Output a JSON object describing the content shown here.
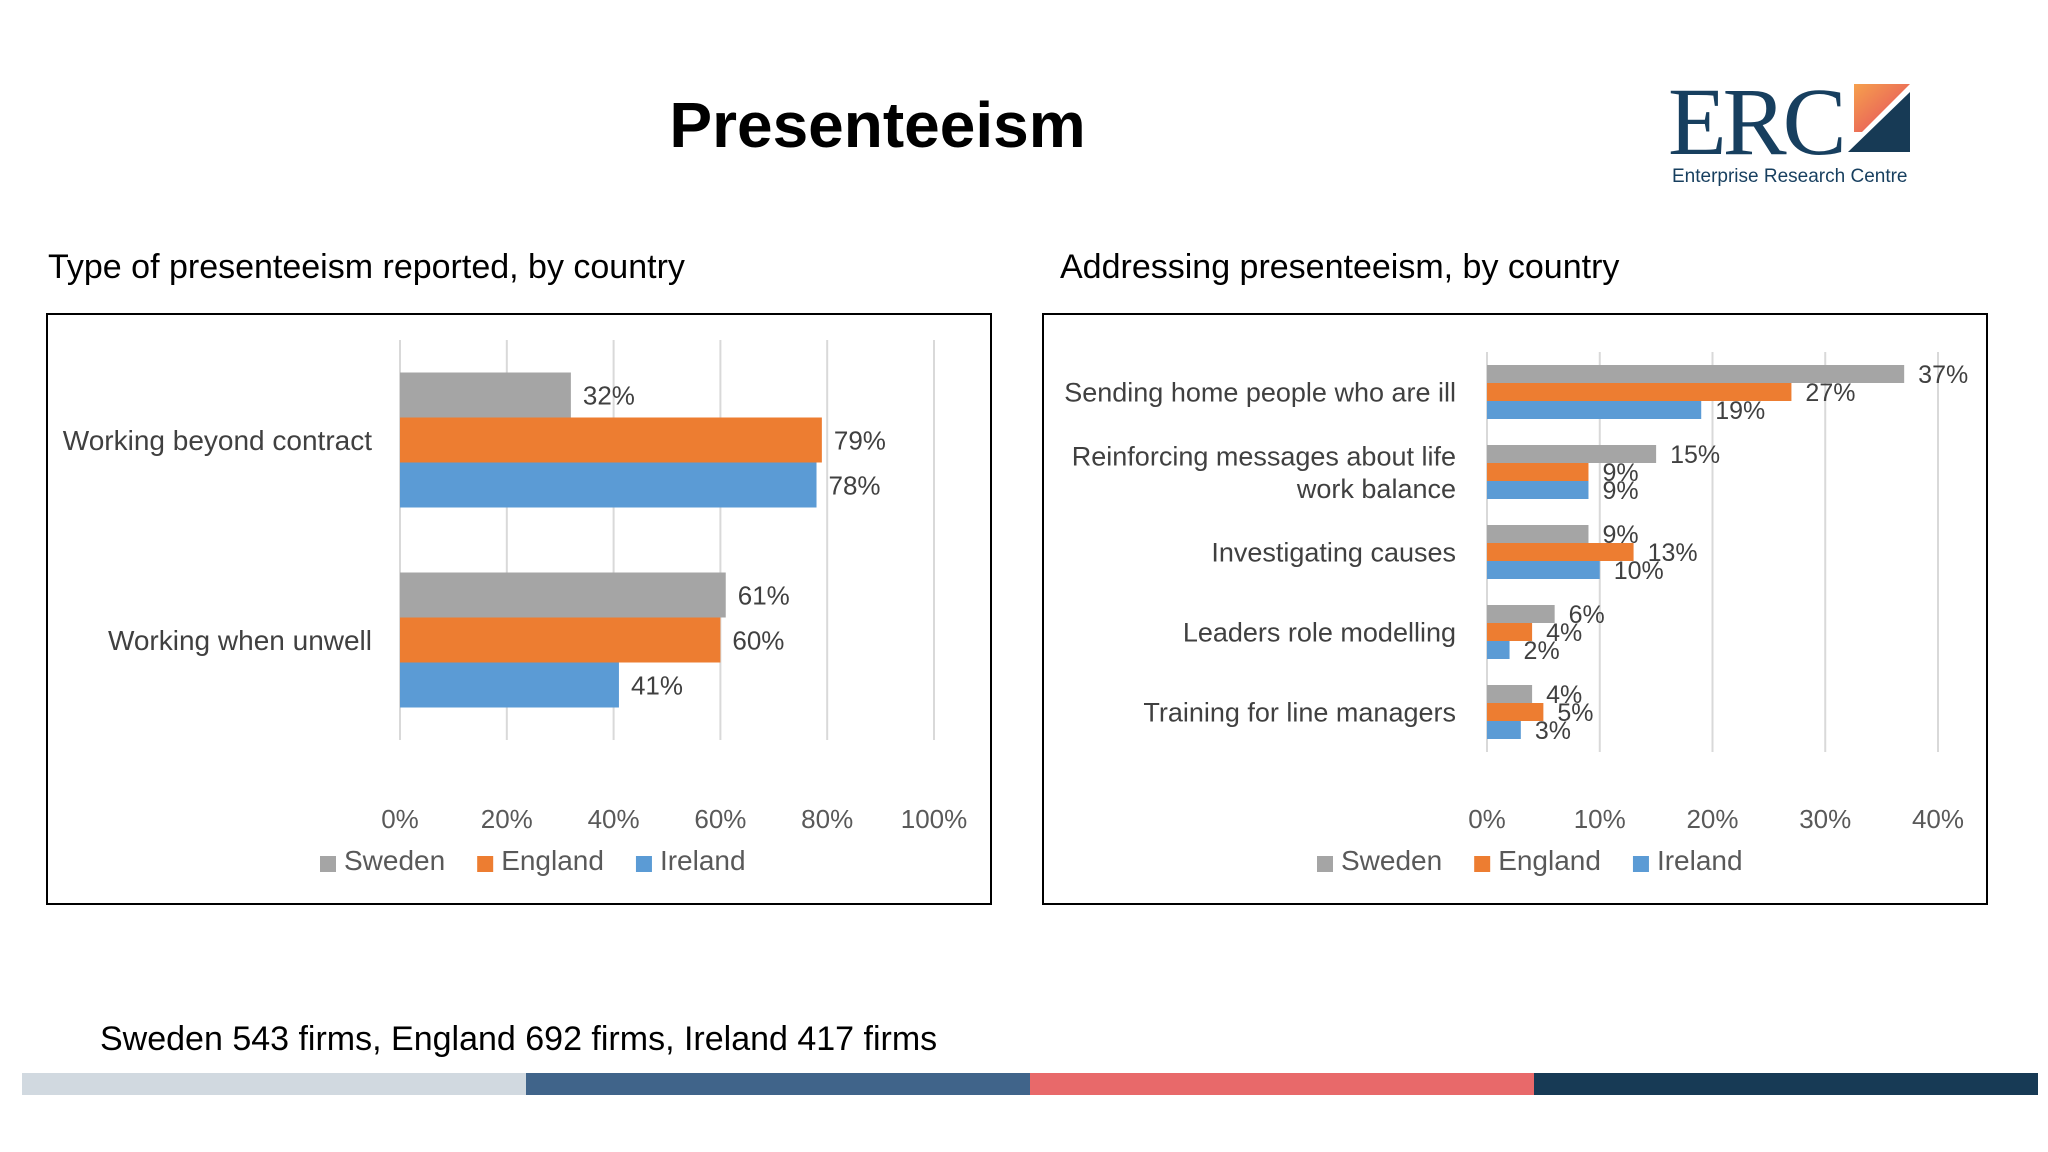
{
  "slide": {
    "title": "Presenteeism",
    "footnote": "Sweden 543 firms, England 692 firms, Ireland 417 firms"
  },
  "logo": {
    "text": "ERC",
    "subtitle": "Enterprise Research Centre"
  },
  "colors": {
    "sweden": "#a5a5a5",
    "england": "#ed7d31",
    "ireland": "#5b9bd5",
    "stripes": [
      "#d1d9e0",
      "#40648a",
      "#e8696a",
      "#173a55"
    ]
  },
  "chart_data": [
    {
      "type": "bar",
      "orientation": "horizontal",
      "title": "Type of presenteeism reported, by country",
      "categories": [
        "Working beyond contract",
        "Working when unwell"
      ],
      "series": [
        {
          "name": "Sweden",
          "values": [
            32,
            61
          ]
        },
        {
          "name": "England",
          "values": [
            79,
            60
          ]
        },
        {
          "name": "Ireland",
          "values": [
            78,
            41
          ]
        }
      ],
      "xlim": [
        0,
        100
      ],
      "xticks": [
        "0%",
        "20%",
        "40%",
        "60%",
        "80%",
        "100%"
      ],
      "value_suffix": "%",
      "grid": true,
      "legend": "bottom"
    },
    {
      "type": "bar",
      "orientation": "horizontal",
      "title": "Addressing presenteeism, by country",
      "categories": [
        "Sending home people who are ill",
        "Reinforcing messages about life work balance",
        "Investigating causes",
        "Leaders role modelling",
        "Training for line managers"
      ],
      "series": [
        {
          "name": "Sweden",
          "values": [
            37,
            15,
            9,
            6,
            4
          ]
        },
        {
          "name": "England",
          "values": [
            27,
            9,
            13,
            4,
            5
          ]
        },
        {
          "name": "Ireland",
          "values": [
            19,
            9,
            10,
            2,
            3
          ]
        }
      ],
      "xlim": [
        0,
        40
      ],
      "xticks": [
        "0%",
        "10%",
        "20%",
        "30%",
        "40%"
      ],
      "value_suffix": "%",
      "grid": true,
      "legend": "bottom"
    }
  ]
}
